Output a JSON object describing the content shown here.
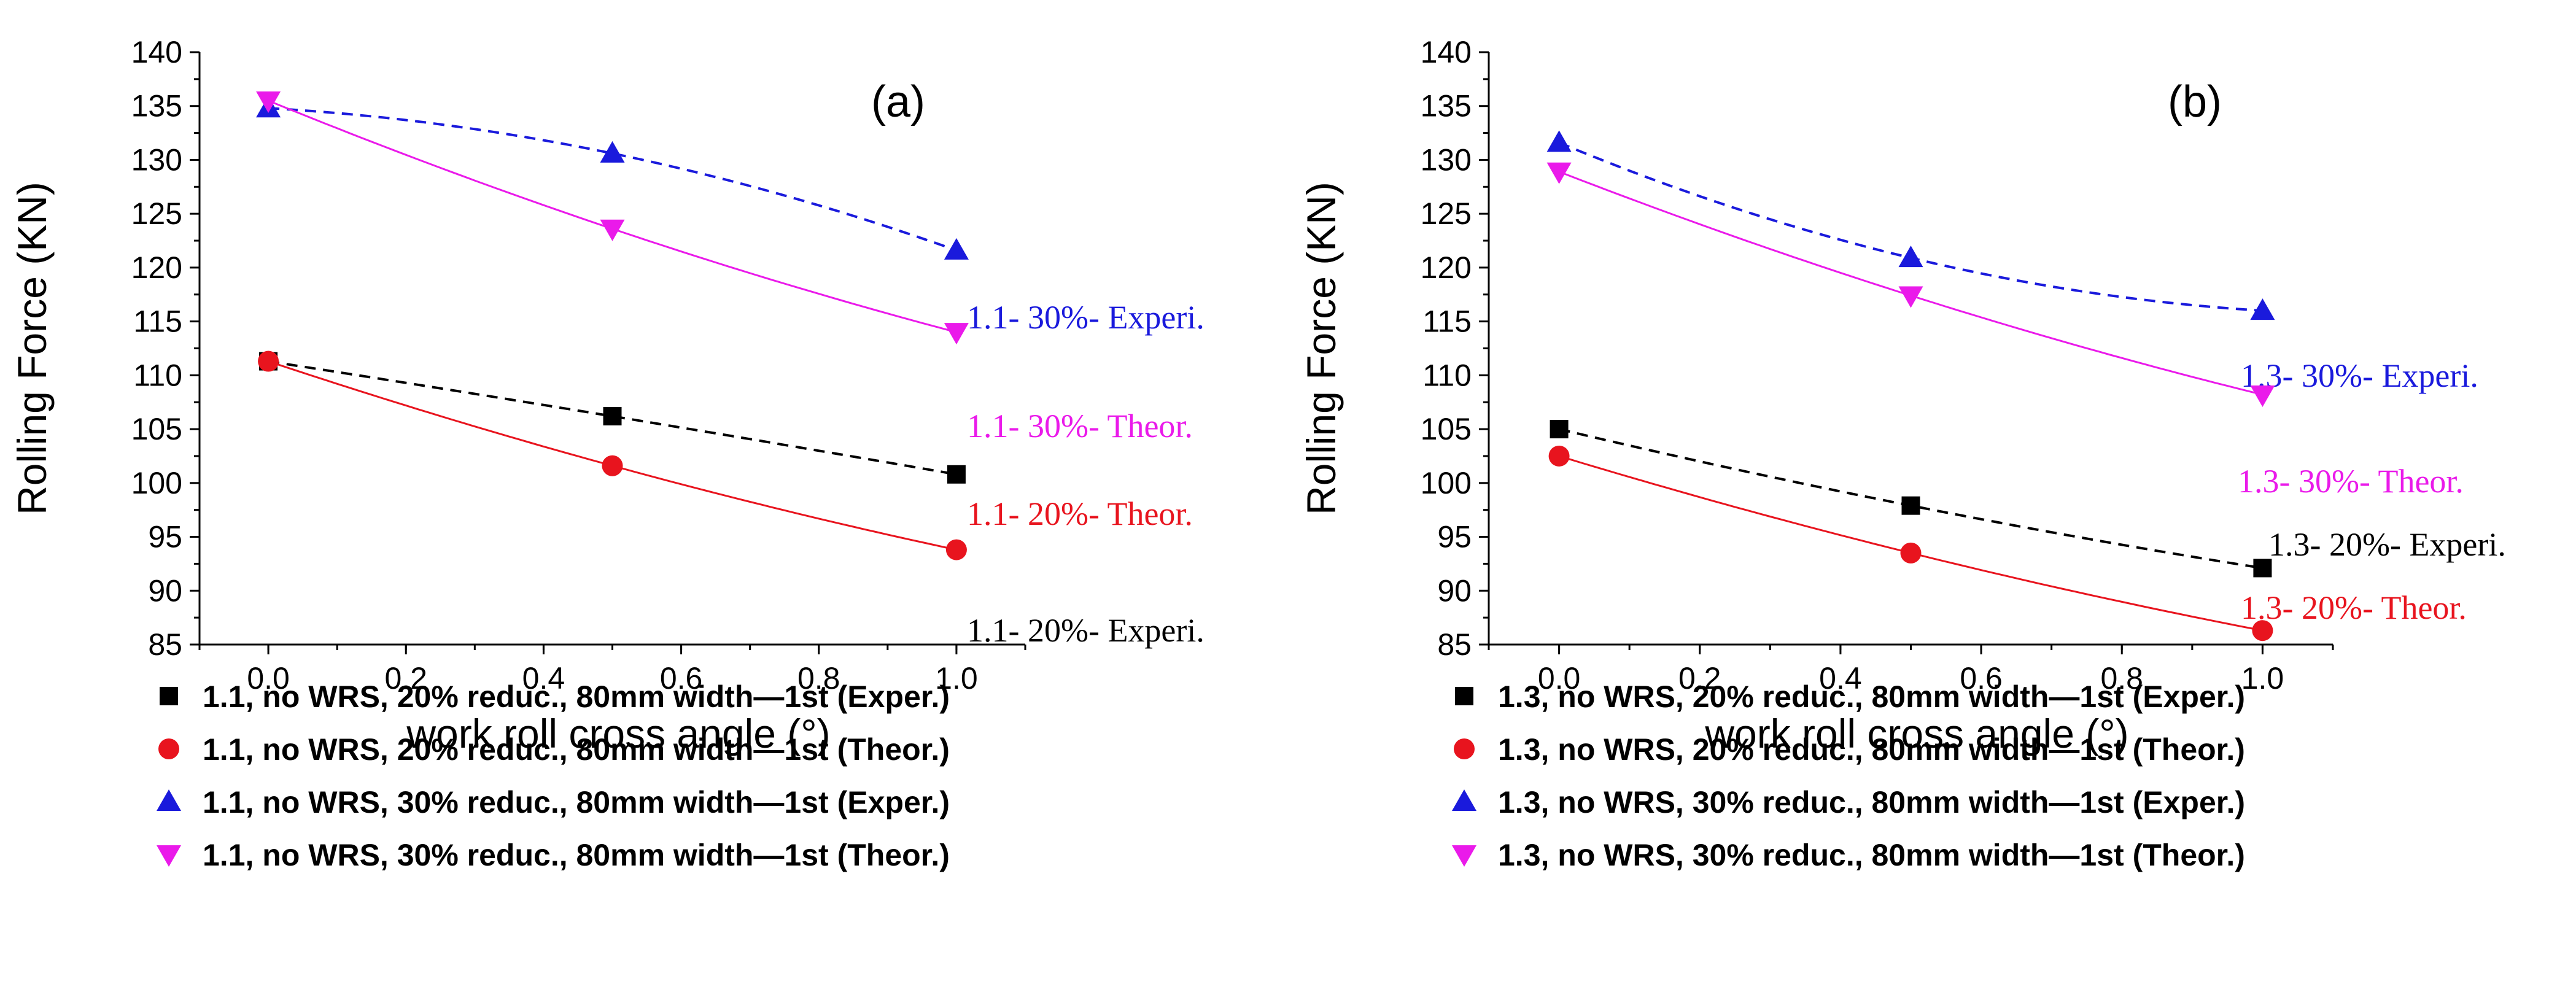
{
  "chart_data": [
    {
      "type": "line",
      "panel_label": "(a)",
      "xlabel": "work roll cross angle (°)",
      "ylabel": "Rolling Force (KN)",
      "xlim": [
        -0.1,
        1.1
      ],
      "ylim": [
        85,
        140
      ],
      "xticks": [
        "0.0",
        "0.2",
        "0.4",
        "0.6",
        "0.8",
        "1.0"
      ],
      "yticks": [
        "85",
        "90",
        "95",
        "100",
        "105",
        "110",
        "115",
        "120",
        "125",
        "130",
        "135",
        "140"
      ],
      "grid": false,
      "legend_position": "below",
      "series": [
        {
          "name": "1.1, no WRS, 20% reduc., 80mm width—1st (Exper.)",
          "marker": "square",
          "color": "#000000",
          "line": "dashed",
          "x": [
            0.0,
            0.5,
            1.0
          ],
          "y": [
            111.3,
            106.2,
            100.8
          ],
          "annotation": "1.1- 20%- Experi."
        },
        {
          "name": "1.1, no WRS, 20% reduc., 80mm width—1st (Theor.)",
          "marker": "circle",
          "color": "#e8141e",
          "line": "solid",
          "x": [
            0.0,
            0.5,
            1.0
          ],
          "y": [
            111.3,
            101.6,
            93.8
          ],
          "annotation": "1.1- 20%- Theor."
        },
        {
          "name": "1.1, no WRS, 30% reduc., 80mm width—1st (Exper.)",
          "marker": "triangle-up",
          "color": "#1a1adc",
          "line": "dashed",
          "x": [
            0.0,
            0.5,
            1.0
          ],
          "y": [
            134.8,
            130.6,
            121.6
          ],
          "annotation": "1.1- 30%- Experi."
        },
        {
          "name": "1.1, no WRS, 30% reduc., 80mm width—1st (Theor.)",
          "marker": "triangle-down",
          "color": "#ea1aea",
          "line": "solid",
          "x": [
            0.0,
            0.5,
            1.0
          ],
          "y": [
            135.5,
            123.6,
            114.0
          ],
          "annotation": "1.1- 30%- Theor."
        }
      ]
    },
    {
      "type": "line",
      "panel_label": "(b)",
      "xlabel": "work roll cross angle (°)",
      "ylabel": "Rolling Force (KN)",
      "xlim": [
        -0.1,
        1.1
      ],
      "ylim": [
        85,
        140
      ],
      "xticks": [
        "0.0",
        "0.2",
        "0.4",
        "0.6",
        "0.8",
        "1.0"
      ],
      "yticks": [
        "85",
        "90",
        "95",
        "100",
        "105",
        "110",
        "115",
        "120",
        "125",
        "130",
        "135",
        "140"
      ],
      "grid": false,
      "legend_position": "below",
      "series": [
        {
          "name": "1.3, no WRS, 20% reduc., 80mm width—1st (Exper.)",
          "marker": "square",
          "color": "#000000",
          "line": "dashed",
          "x": [
            0.0,
            0.5,
            1.0
          ],
          "y": [
            105.0,
            97.9,
            92.1
          ],
          "annotation": "1.3- 20%- Experi."
        },
        {
          "name": "1.3, no WRS, 20% reduc., 80mm width—1st (Theor.)",
          "marker": "circle",
          "color": "#e8141e",
          "line": "solid",
          "x": [
            0.0,
            0.5,
            1.0
          ],
          "y": [
            102.5,
            93.5,
            86.3
          ],
          "annotation": "1.3- 20%- Theor."
        },
        {
          "name": "1.3, no WRS, 30% reduc., 80mm width—1st (Exper.)",
          "marker": "triangle-up",
          "color": "#1a1adc",
          "line": "dashed",
          "x": [
            0.0,
            0.5,
            1.0
          ],
          "y": [
            131.6,
            120.9,
            116.0
          ],
          "annotation": "1.3- 30%- Experi."
        },
        {
          "name": "1.3, no WRS, 30% reduc., 80mm width—1st (Theor.)",
          "marker": "triangle-down",
          "color": "#ea1aea",
          "line": "solid",
          "x": [
            0.0,
            0.5,
            1.0
          ],
          "y": [
            128.9,
            117.4,
            108.2
          ],
          "annotation": "1.3- 30%- Theor."
        }
      ]
    }
  ]
}
